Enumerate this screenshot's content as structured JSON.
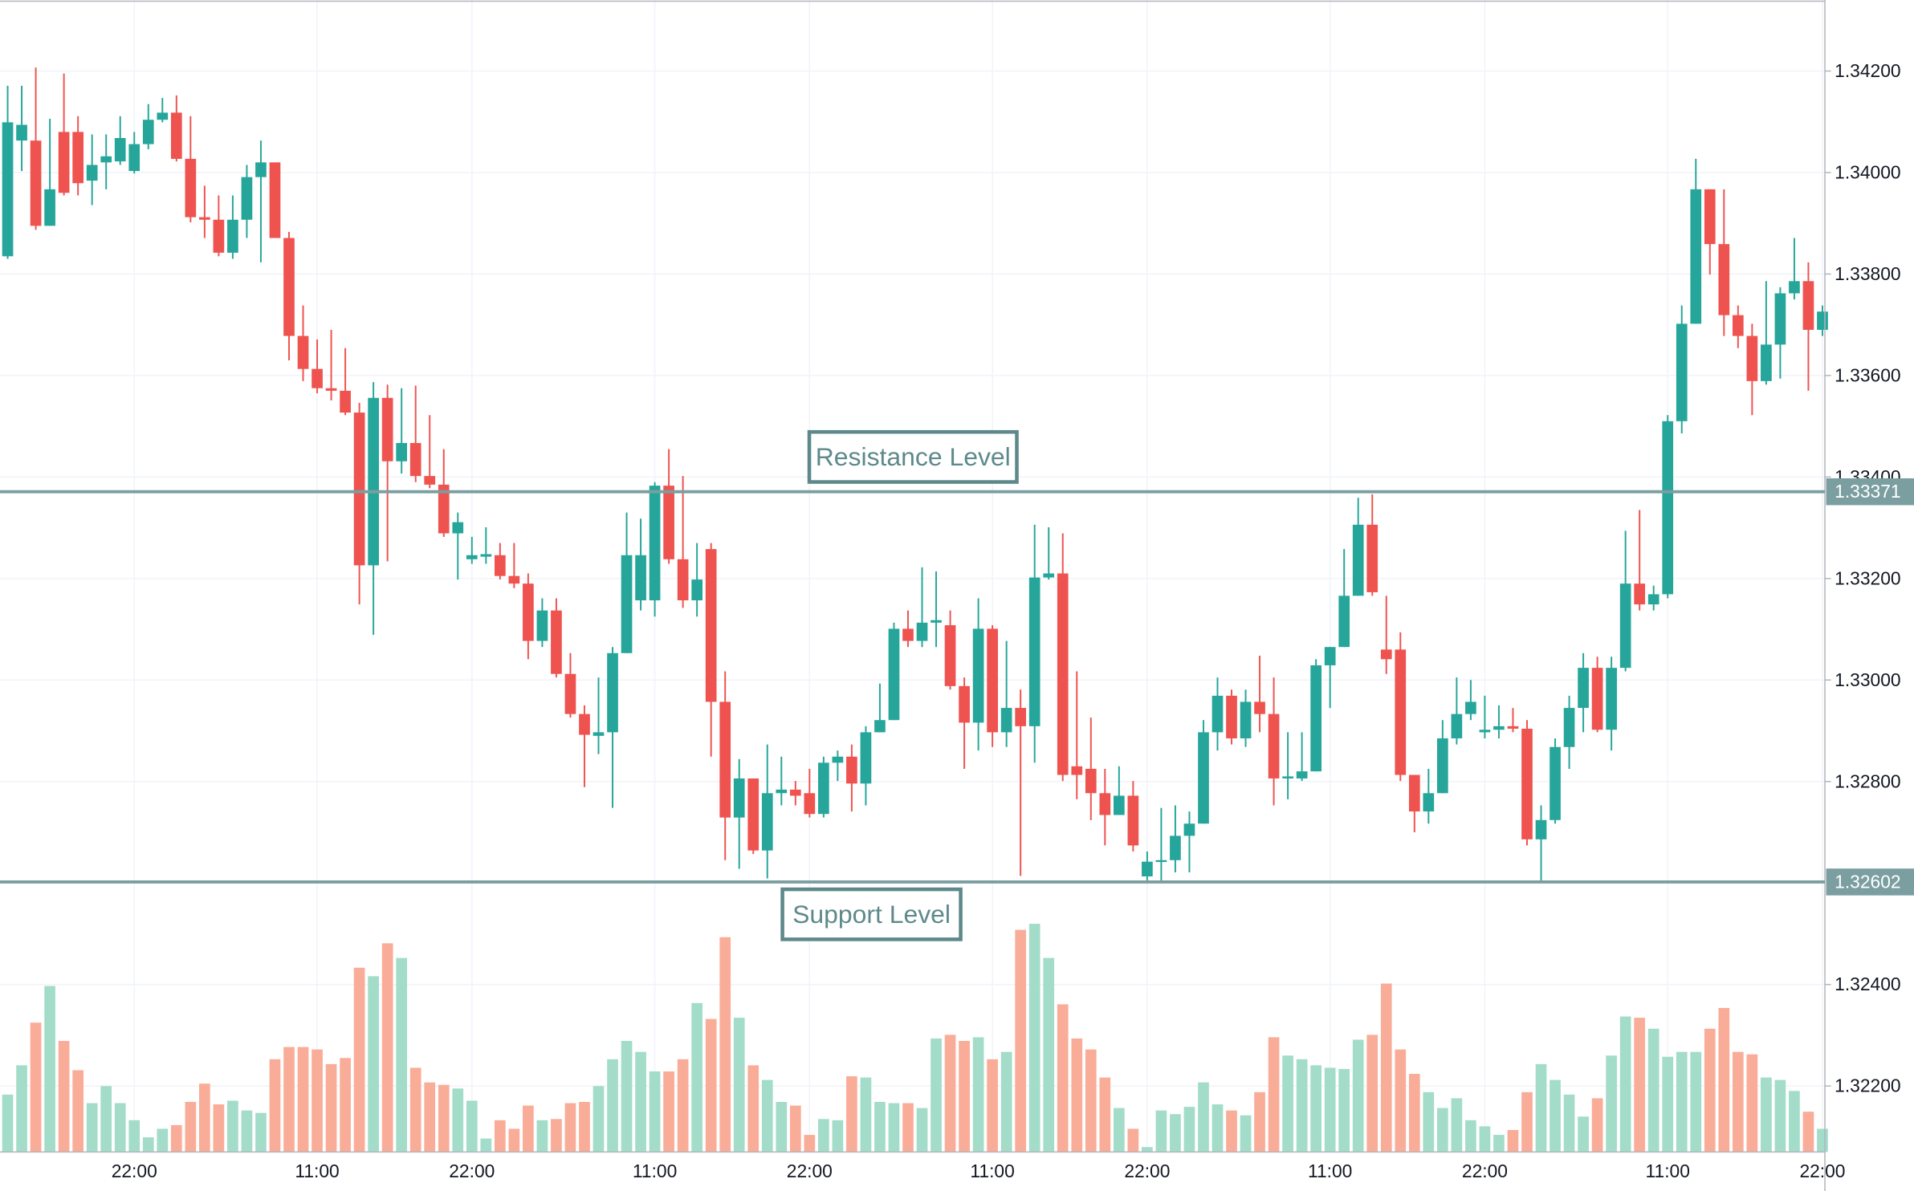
{
  "chart_data": {
    "type": "candlestick",
    "categories": [
      null,
      null,
      null,
      null,
      null,
      null,
      null,
      null,
      null,
      "22:00",
      null,
      null,
      null,
      null,
      null,
      null,
      null,
      null,
      null,
      null,
      null,
      null,
      "11:00",
      null,
      null,
      null,
      null,
      null,
      null,
      null,
      null,
      null,
      null,
      "22:00",
      null,
      null,
      null,
      null,
      null,
      null,
      null,
      null,
      null,
      null,
      null,
      null,
      "11:00",
      null,
      null,
      null,
      null,
      null,
      null,
      null,
      null,
      null,
      null,
      "22:00",
      null,
      null,
      null,
      null,
      null,
      null,
      null,
      null,
      null,
      null,
      null,
      null,
      "11:00",
      null,
      null,
      null,
      null,
      null,
      null,
      null,
      null,
      null,
      null,
      "22:00",
      null,
      null,
      null,
      null,
      null,
      null,
      null,
      null,
      null,
      null,
      null,
      null,
      "11:00",
      null,
      null,
      null,
      null,
      null,
      null,
      null,
      null,
      null,
      null,
      "22:00",
      null,
      null,
      null,
      null,
      null,
      null,
      null,
      null,
      null,
      null,
      null,
      null,
      "11:00",
      null,
      null,
      null,
      null,
      null,
      null,
      null,
      null,
      null,
      null,
      "22:00"
    ],
    "open": [
      1.33835,
      1.34063,
      1.34063,
      1.33895,
      1.3408,
      1.3408,
      1.33984,
      1.3402,
      1.34022,
      1.34003,
      1.34056,
      1.34104,
      1.34118,
      1.34027,
      1.33912,
      1.33907,
      1.33842,
      1.33907,
      1.33991,
      1.3402,
      1.33871,
      1.33678,
      1.33613,
      1.33575,
      1.3357,
      1.33527,
      1.33226,
      1.33556,
      1.33431,
      1.33467,
      1.33402,
      1.33385,
      1.33289,
      1.33238,
      1.33243,
      1.33246,
      1.33205,
      1.3319,
      1.33077,
      1.33137,
      1.33012,
      1.32933,
      1.3289,
      1.32897,
      1.33053,
      1.33157,
      1.33157,
      1.33383,
      1.33238,
      1.33157,
      1.33258,
      1.32957,
      1.32729,
      1.32806,
      1.32664,
      1.32777,
      1.32784,
      1.32777,
      1.32736,
      1.32837,
      1.32849,
      1.32796,
      1.32897,
      1.32921,
      1.33101,
      1.33077,
      1.33113,
      1.33108,
      1.32988,
      1.32916,
      1.33101,
      1.32897,
      1.32945,
      1.32909,
      1.33202,
      1.3321,
      1.3283,
      1.32825,
      1.32777,
      1.32734,
      1.32772,
      1.32613,
      1.32642,
      1.32645,
      1.32693,
      1.32717,
      1.32897,
      1.32969,
      1.32885,
      1.32957,
      1.32933,
      1.32806,
      1.32806,
      1.3282,
      1.33029,
      1.33065,
      1.33166,
      1.33306,
      1.3306,
      1.3306,
      1.32813,
      1.32741,
      1.32777,
      1.32885,
      1.32933,
      1.32897,
      1.32902,
      1.32909,
      1.32904,
      1.32686,
      1.32724,
      1.32868,
      1.32945,
      1.33024,
      1.32902,
      1.33024,
      1.3319,
      1.33149,
      1.33169,
      1.3351,
      1.33702,
      1.33967,
      1.33859,
      1.33719,
      1.33678,
      1.33589,
      1.33661,
      1.33762,
      1.33786,
      1.3369
    ],
    "high": [
      1.34171,
      1.34171,
      1.34207,
      1.34106,
      1.34195,
      1.34111,
      1.34075,
      1.34075,
      1.34111,
      1.3408,
      1.34135,
      1.34147,
      1.34152,
      1.34111,
      1.33974,
      1.33955,
      1.33955,
      1.34015,
      1.34063,
      1.3402,
      1.33883,
      1.33738,
      1.33671,
      1.3369,
      1.33654,
      1.33546,
      1.33587,
      1.33582,
      1.33575,
      1.3358,
      1.33522,
      1.33455,
      1.3333,
      1.33282,
      1.33301,
      1.3327,
      1.3327,
      1.3321,
      1.33161,
      1.33161,
      1.33053,
      1.3295,
      1.33005,
      1.33065,
      1.3333,
      1.33318,
      1.3339,
      1.33455,
      1.33402,
      1.3327,
      1.3327,
      1.33017,
      1.32844,
      1.32806,
      1.32873,
      1.32849,
      1.32801,
      1.32825,
      1.32849,
      1.32861,
      1.32873,
      1.32909,
      1.32993,
      1.33113,
      1.33137,
      1.33222,
      1.33214,
      1.33137,
      1.33005,
      1.33161,
      1.33108,
      1.33077,
      1.32981,
      1.33306,
      1.33301,
      1.33289,
      1.33017,
      1.32926,
      1.32825,
      1.3283,
      1.32801,
      1.32662,
      1.32748,
      1.32753,
      1.32741,
      1.32921,
      1.33005,
      1.32981,
      1.32981,
      1.33048,
      1.33005,
      1.32897,
      1.32897,
      1.33041,
      1.33065,
      1.33258,
      1.33359,
      1.33366,
      1.33166,
      1.33094,
      1.32813,
      1.32825,
      1.32921,
      1.33005,
      1.33,
      1.32969,
      1.3295,
      1.32945,
      1.32921,
      1.32753,
      1.32885,
      1.32969,
      1.33053,
      1.33046,
      1.33046,
      1.33294,
      1.33335,
      1.33186,
      1.33522,
      1.33738,
      1.34027,
      1.33967,
      1.33967,
      1.33738,
      1.33702,
      1.33786,
      1.33774,
      1.33871,
      1.33823,
      1.33738
    ],
    "low": [
      1.3383,
      1.34003,
      1.33887,
      1.33895,
      1.33955,
      1.33955,
      1.33936,
      1.33967,
      1.34015,
      1.33998,
      1.34046,
      1.34099,
      1.34022,
      1.33902,
      1.33871,
      1.33835,
      1.3383,
      1.33871,
      1.33823,
      1.33871,
      1.3363,
      1.33589,
      1.33565,
      1.33551,
      1.33522,
      1.33149,
      1.33089,
      1.33234,
      1.33407,
      1.3339,
      1.33378,
      1.33282,
      1.33198,
      1.33229,
      1.33229,
      1.33198,
      1.33181,
      1.33041,
      1.33065,
      1.33005,
      1.32926,
      1.32789,
      1.32854,
      1.32748,
      1.33053,
      1.33137,
      1.33125,
      1.33229,
      1.33142,
      1.33125,
      1.32849,
      1.32645,
      1.32628,
      1.32657,
      1.32609,
      1.32753,
      1.32753,
      1.32729,
      1.32729,
      1.32801,
      1.32741,
      1.32753,
      1.32897,
      1.32921,
      1.33065,
      1.33065,
      1.33065,
      1.32981,
      1.32825,
      1.32861,
      1.32868,
      1.32868,
      1.32614,
      1.32837,
      1.33198,
      1.32801,
      1.32765,
      1.32724,
      1.32674,
      1.32734,
      1.32662,
      1.32604,
      1.32604,
      1.32621,
      1.32621,
      1.32717,
      1.32861,
      1.32873,
      1.32868,
      1.32897,
      1.32753,
      1.32765,
      1.32801,
      1.3282,
      1.32945,
      1.33065,
      1.33166,
      1.33166,
      1.33012,
      1.32801,
      1.327,
      1.32717,
      1.32777,
      1.32873,
      1.32921,
      1.32885,
      1.32885,
      1.32897,
      1.32674,
      1.32604,
      1.32717,
      1.32825,
      1.32897,
      1.32897,
      1.32861,
      1.33017,
      1.33137,
      1.33137,
      1.33161,
      1.33486,
      1.33702,
      1.33799,
      1.33678,
      1.33654,
      1.33522,
      1.33582,
      1.33594,
      1.3375,
      1.3357,
      1.33678
    ],
    "close": [
      1.34099,
      1.34094,
      1.33895,
      1.33967,
      1.3396,
      1.33979,
      1.34015,
      1.34032,
      1.34068,
      1.34056,
      1.34104,
      1.34118,
      1.34027,
      1.33912,
      1.33907,
      1.33842,
      1.33907,
      1.33991,
      1.3402,
      1.33871,
      1.33678,
      1.33613,
      1.33575,
      1.3357,
      1.33527,
      1.33226,
      1.33556,
      1.33431,
      1.33467,
      1.33402,
      1.33385,
      1.33289,
      1.33311,
      1.33246,
      1.33248,
      1.33205,
      1.3319,
      1.33077,
      1.33137,
      1.33012,
      1.32933,
      1.32892,
      1.32897,
      1.33053,
      1.33246,
      1.33246,
      1.33383,
      1.33238,
      1.33157,
      1.33198,
      1.32957,
      1.32729,
      1.32806,
      1.32664,
      1.32777,
      1.32784,
      1.32772,
      1.32736,
      1.32837,
      1.32849,
      1.32796,
      1.32897,
      1.32921,
      1.33101,
      1.33077,
      1.33113,
      1.33118,
      1.32988,
      1.32916,
      1.33101,
      1.32897,
      1.32945,
      1.32909,
      1.33202,
      1.3321,
      1.32813,
      1.32813,
      1.32777,
      1.32734,
      1.32772,
      1.32674,
      1.32642,
      1.32645,
      1.32693,
      1.32717,
      1.32897,
      1.32969,
      1.32885,
      1.32957,
      1.32933,
      1.32806,
      1.3281,
      1.3282,
      1.33029,
      1.33065,
      1.33166,
      1.33306,
      1.33173,
      1.33041,
      1.32813,
      1.32741,
      1.32777,
      1.32885,
      1.32933,
      1.32957,
      1.32902,
      1.32909,
      1.32904,
      1.32686,
      1.32724,
      1.32868,
      1.32945,
      1.33024,
      1.32902,
      1.33024,
      1.3319,
      1.33149,
      1.33169,
      1.3351,
      1.33702,
      1.33967,
      1.33859,
      1.33719,
      1.33678,
      1.33589,
      1.33661,
      1.33762,
      1.33786,
      1.3369,
      1.33726
    ],
    "volume": [
      47,
      71,
      106,
      136,
      91,
      67,
      40,
      54,
      40,
      26,
      12,
      19,
      22,
      41,
      56,
      39,
      42,
      34,
      32,
      76,
      86,
      86,
      84,
      72,
      77,
      151,
      144,
      171,
      159,
      69,
      57,
      55,
      52,
      42,
      11,
      26,
      19,
      38,
      26,
      27,
      40,
      41,
      54,
      76,
      91,
      82,
      66,
      66,
      76,
      122,
      109,
      176,
      110,
      71,
      59,
      41,
      38,
      14,
      27,
      26,
      62,
      61,
      41,
      40,
      40,
      36,
      93,
      96,
      91,
      94,
      76,
      82,
      182,
      187,
      159,
      121,
      93,
      84,
      61,
      36,
      19,
      4,
      34,
      31,
      37,
      57,
      39,
      34,
      30,
      49,
      94,
      79,
      76,
      71,
      69,
      68,
      92,
      96,
      138,
      84,
      64,
      49,
      36,
      44,
      26,
      21,
      14,
      18,
      49,
      72,
      59,
      47,
      29,
      44,
      79,
      111,
      110,
      101,
      78,
      82,
      82,
      101,
      118,
      82,
      80,
      61,
      59,
      50,
      33,
      19
    ],
    "up_color": "#26a69a",
    "down_color": "#ef5350",
    "volume_up_color": "#a3dcc9",
    "volume_down_color": "#f9ad98",
    "ylim": [
      1.3207,
      1.3434
    ],
    "yticks": [
      {
        "value": 1.322,
        "label": "1.32200"
      },
      {
        "value": 1.324,
        "label": "1.32400"
      },
      {
        "value": 1.328,
        "label": "1.32800"
      },
      {
        "value": 1.33,
        "label": "1.33000"
      },
      {
        "value": 1.332,
        "label": "1.33200"
      },
      {
        "value": 1.334,
        "label": "1.33400"
      },
      {
        "value": 1.336,
        "label": "1.33600"
      },
      {
        "value": 1.338,
        "label": "1.33800"
      },
      {
        "value": 1.34,
        "label": "1.34000"
      },
      {
        "value": 1.342,
        "label": "1.34200"
      }
    ],
    "grid": true,
    "levels": [
      {
        "value": 1.33371,
        "label": "Resistance Level",
        "color": "#7b9ea1"
      },
      {
        "value": 1.32602,
        "label": "Support Level",
        "color": "#7b9ea1"
      }
    ]
  }
}
